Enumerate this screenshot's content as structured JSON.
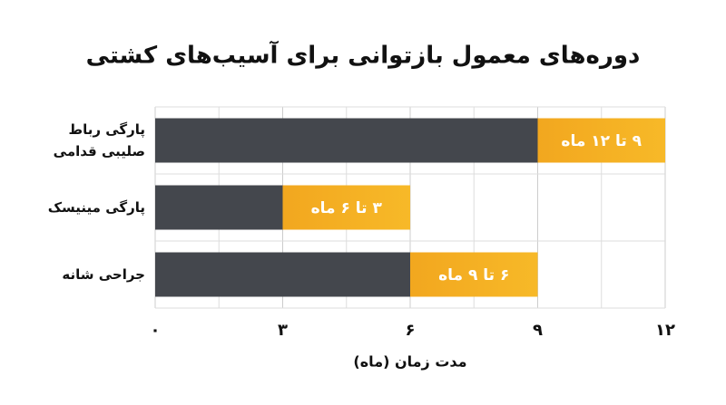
{
  "chart_data": {
    "type": "range_bar",
    "title": "دوره‌های معمول بازتوانی برای آسیب‌های کشتی",
    "categories": [
      "پارگی رباط صلیبی قدامی",
      "پارگی مینیسک",
      "جراحی شانه"
    ],
    "low": [
      9,
      3,
      6
    ],
    "high": [
      12,
      6,
      9
    ],
    "range_labels": [
      "۹ تا ۱۲ ماه",
      "۳ تا ۶ ماه",
      "۶ تا ۹ ماه"
    ],
    "base_color": "#44474d",
    "range_color": "#f2a71f",
    "xlabel": "مدت زمان (ماه)",
    "xlim": [
      0,
      12
    ],
    "xticks": [
      {
        "value": 0,
        "label": "۰"
      },
      {
        "value": 3,
        "label": "۳"
      },
      {
        "value": 6,
        "label": "۶"
      },
      {
        "value": 9,
        "label": "۹"
      },
      {
        "value": 12,
        "label": "۱۲"
      }
    ],
    "minor_xticks": [
      1.5,
      4.5,
      7.5,
      10.5
    ],
    "grid": true
  }
}
